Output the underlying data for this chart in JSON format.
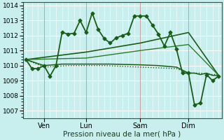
{
  "title": "",
  "xlabel": "Pression niveau de la mer( hPa )",
  "ylabel": "",
  "background_color": "#c8eeee",
  "grid_color": "#ddf5f5",
  "line_color_dark": "#1a5c1a",
  "ylim": [
    1006.5,
    1014.2
  ],
  "xlim": [
    -0.5,
    32.5
  ],
  "xtick_positions": [
    3,
    10,
    19,
    27
  ],
  "xtick_labels": [
    "Ven",
    "Lun",
    "Sam",
    "Dim"
  ],
  "ytick_positions": [
    1007,
    1008,
    1009,
    1010,
    1011,
    1012,
    1013,
    1014
  ],
  "ytick_labels": [
    "1007",
    "1008",
    "1009",
    "1010",
    "1011",
    "1012",
    "1013",
    "1014"
  ],
  "vlines": [
    3,
    10,
    19,
    27
  ],
  "vline_color": "#a0a0a0",
  "series": [
    {
      "x": [
        0,
        3,
        5,
        7,
        10,
        13,
        16,
        19,
        22,
        25,
        27,
        29,
        31,
        32
      ],
      "y": [
        1010.4,
        1009.9,
        1009.95,
        1010.0,
        1010.0,
        1010.0,
        1009.95,
        1009.9,
        1009.85,
        1009.8,
        1009.5,
        1009.5,
        1009.4,
        1009.4
      ],
      "style": "dotted",
      "marker": null,
      "linewidth": 1.0,
      "color": "#1a5c1a"
    },
    {
      "x": [
        0,
        3,
        6,
        10,
        14,
        19,
        22,
        25,
        27,
        28,
        29,
        30,
        31,
        32
      ],
      "y": [
        1010.4,
        1010.0,
        1010.1,
        1010.1,
        1010.1,
        1010.05,
        1010.0,
        1009.9,
        1009.5,
        1009.5,
        1009.4,
        1009.5,
        1009.35,
        1009.35
      ],
      "style": "solid",
      "marker": null,
      "linewidth": 1.1,
      "color": "#1a5c1a"
    },
    {
      "x": [
        0,
        10,
        19,
        27,
        32
      ],
      "y": [
        1010.4,
        1010.9,
        1011.5,
        1012.2,
        1009.35
      ],
      "style": "solid",
      "marker": null,
      "linewidth": 1.2,
      "color": "#1a5c1a"
    },
    {
      "x": [
        0,
        10,
        19,
        27,
        32
      ],
      "y": [
        1010.4,
        1010.5,
        1011.0,
        1011.4,
        1009.35
      ],
      "style": "solid",
      "marker": null,
      "linewidth": 1.0,
      "color": "#2d7a2d"
    },
    {
      "x": [
        0,
        1,
        2,
        3,
        4,
        5,
        6,
        7,
        8,
        9,
        10,
        11,
        12,
        13,
        14,
        15,
        16,
        17,
        18,
        19,
        20,
        21,
        22,
        23,
        24,
        25,
        26,
        27,
        28,
        29,
        30,
        31,
        32
      ],
      "y": [
        1010.4,
        1009.8,
        1009.8,
        1010.0,
        1009.3,
        1010.0,
        1012.2,
        1012.1,
        1012.15,
        1013.0,
        1012.2,
        1013.5,
        1012.4,
        1011.8,
        1011.5,
        1011.85,
        1012.0,
        1012.15,
        1013.3,
        1013.3,
        1013.3,
        1012.7,
        1012.1,
        1011.3,
        1012.2,
        1011.1,
        1009.5,
        1009.5,
        1007.4,
        1007.5,
        1009.4,
        1009.0,
        1009.3
      ],
      "style": "solid",
      "marker": "D",
      "markersize": 2.5,
      "linewidth": 1.3,
      "color": "#1a5c1a"
    }
  ]
}
